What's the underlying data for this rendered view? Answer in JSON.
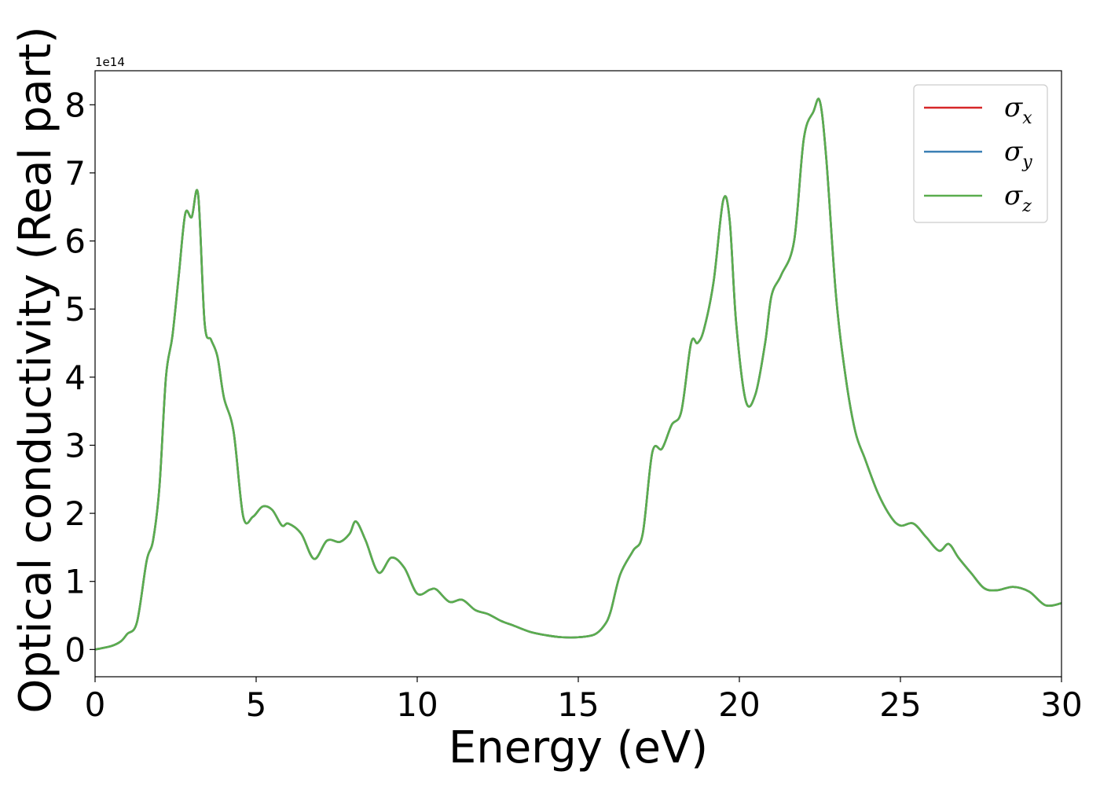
{
  "chart_data": {
    "type": "line",
    "xlabel": "Energy (eV)",
    "ylabel": "Optical conductivity (Real part)",
    "offset_text": "1e14",
    "y_scale_factor": 100000000000000.0,
    "xlim": [
      0,
      30
    ],
    "ylim": [
      -0.4,
      8.5
    ],
    "xticks": [
      0,
      5,
      10,
      15,
      20,
      25,
      30
    ],
    "xtick_labels": [
      "0",
      "5",
      "10",
      "15",
      "20",
      "25",
      "30"
    ],
    "yticks": [
      0,
      1,
      2,
      3,
      4,
      5,
      6,
      7,
      8
    ],
    "ytick_labels": [
      "0",
      "1",
      "2",
      "3",
      "4",
      "5",
      "6",
      "7",
      "8"
    ],
    "grid": false,
    "legend_position": "top-right",
    "x": [
      0,
      0.5,
      0.8,
      1.0,
      1.3,
      1.6,
      1.8,
      2.0,
      2.2,
      2.4,
      2.6,
      2.8,
      3.0,
      3.2,
      3.4,
      3.6,
      3.8,
      4.0,
      4.3,
      4.6,
      4.9,
      5.2,
      5.5,
      5.8,
      6.0,
      6.4,
      6.8,
      7.2,
      7.6,
      7.9,
      8.1,
      8.4,
      8.8,
      9.2,
      9.6,
      10.0,
      10.4,
      10.6,
      11.0,
      11.4,
      11.8,
      12.2,
      12.6,
      13.0,
      13.5,
      14.0,
      14.5,
      15.0,
      15.5,
      15.8,
      16.0,
      16.3,
      16.7,
      17.0,
      17.3,
      17.6,
      17.9,
      18.2,
      18.5,
      18.7,
      18.9,
      19.2,
      19.5,
      19.7,
      19.9,
      20.2,
      20.5,
      20.8,
      21.0,
      21.3,
      21.7,
      22.0,
      22.3,
      22.5,
      22.7,
      23.0,
      23.3,
      23.6,
      23.9,
      24.3,
      24.7,
      25.0,
      25.4,
      25.8,
      26.2,
      26.5,
      26.8,
      27.2,
      27.6,
      28.0,
      28.5,
      29.0,
      29.5,
      30.0
    ],
    "series": [
      {
        "name": "σ_x",
        "label": "σ",
        "sub": "x",
        "color": "#d62728",
        "values": [
          0.0,
          0.05,
          0.12,
          0.23,
          0.4,
          1.3,
          1.6,
          2.4,
          4.0,
          4.6,
          5.5,
          6.4,
          6.35,
          6.68,
          4.8,
          4.55,
          4.3,
          3.7,
          3.2,
          1.95,
          1.95,
          2.1,
          2.05,
          1.82,
          1.85,
          1.7,
          1.33,
          1.6,
          1.58,
          1.7,
          1.88,
          1.6,
          1.13,
          1.35,
          1.2,
          0.82,
          0.88,
          0.88,
          0.7,
          0.73,
          0.58,
          0.52,
          0.42,
          0.35,
          0.26,
          0.21,
          0.18,
          0.18,
          0.22,
          0.35,
          0.55,
          1.1,
          1.45,
          1.7,
          2.9,
          2.95,
          3.3,
          3.5,
          4.5,
          4.5,
          4.7,
          5.4,
          6.6,
          6.3,
          4.8,
          3.65,
          3.75,
          4.5,
          5.2,
          5.5,
          6.0,
          7.5,
          7.9,
          8.05,
          7.2,
          5.2,
          4.0,
          3.2,
          2.8,
          2.3,
          1.95,
          1.82,
          1.85,
          1.65,
          1.45,
          1.55,
          1.35,
          1.12,
          0.9,
          0.87,
          0.92,
          0.85,
          0.65,
          0.68
        ]
      },
      {
        "name": "σ_y",
        "label": "σ",
        "sub": "y",
        "color": "#3a7fb4",
        "values": [
          0.0,
          0.05,
          0.12,
          0.23,
          0.4,
          1.3,
          1.6,
          2.4,
          4.0,
          4.6,
          5.5,
          6.4,
          6.35,
          6.68,
          4.8,
          4.55,
          4.3,
          3.7,
          3.2,
          1.95,
          1.95,
          2.1,
          2.05,
          1.82,
          1.85,
          1.7,
          1.33,
          1.6,
          1.58,
          1.7,
          1.88,
          1.6,
          1.13,
          1.35,
          1.2,
          0.82,
          0.88,
          0.88,
          0.7,
          0.73,
          0.58,
          0.52,
          0.42,
          0.35,
          0.26,
          0.21,
          0.18,
          0.18,
          0.22,
          0.35,
          0.55,
          1.1,
          1.45,
          1.7,
          2.9,
          2.95,
          3.3,
          3.5,
          4.5,
          4.5,
          4.7,
          5.4,
          6.6,
          6.3,
          4.8,
          3.65,
          3.75,
          4.5,
          5.2,
          5.5,
          6.0,
          7.5,
          7.9,
          8.05,
          7.2,
          5.2,
          4.0,
          3.2,
          2.8,
          2.3,
          1.95,
          1.82,
          1.85,
          1.65,
          1.45,
          1.55,
          1.35,
          1.12,
          0.9,
          0.87,
          0.92,
          0.85,
          0.65,
          0.68
        ]
      },
      {
        "name": "σ_z",
        "label": "σ",
        "sub": "z",
        "color": "#5aad4e",
        "values": [
          0.0,
          0.05,
          0.12,
          0.23,
          0.4,
          1.3,
          1.6,
          2.4,
          4.0,
          4.6,
          5.5,
          6.4,
          6.35,
          6.68,
          4.8,
          4.55,
          4.3,
          3.7,
          3.2,
          1.95,
          1.95,
          2.1,
          2.05,
          1.82,
          1.85,
          1.7,
          1.33,
          1.6,
          1.58,
          1.7,
          1.88,
          1.6,
          1.13,
          1.35,
          1.2,
          0.82,
          0.88,
          0.88,
          0.7,
          0.73,
          0.58,
          0.52,
          0.42,
          0.35,
          0.26,
          0.21,
          0.18,
          0.18,
          0.22,
          0.35,
          0.55,
          1.1,
          1.45,
          1.7,
          2.9,
          2.95,
          3.3,
          3.5,
          4.5,
          4.5,
          4.7,
          5.4,
          6.6,
          6.3,
          4.8,
          3.65,
          3.75,
          4.5,
          5.2,
          5.5,
          6.0,
          7.5,
          7.9,
          8.05,
          7.2,
          5.2,
          4.0,
          3.2,
          2.8,
          2.3,
          1.95,
          1.82,
          1.85,
          1.65,
          1.45,
          1.55,
          1.35,
          1.12,
          0.9,
          0.87,
          0.92,
          0.85,
          0.65,
          0.68
        ]
      }
    ]
  }
}
